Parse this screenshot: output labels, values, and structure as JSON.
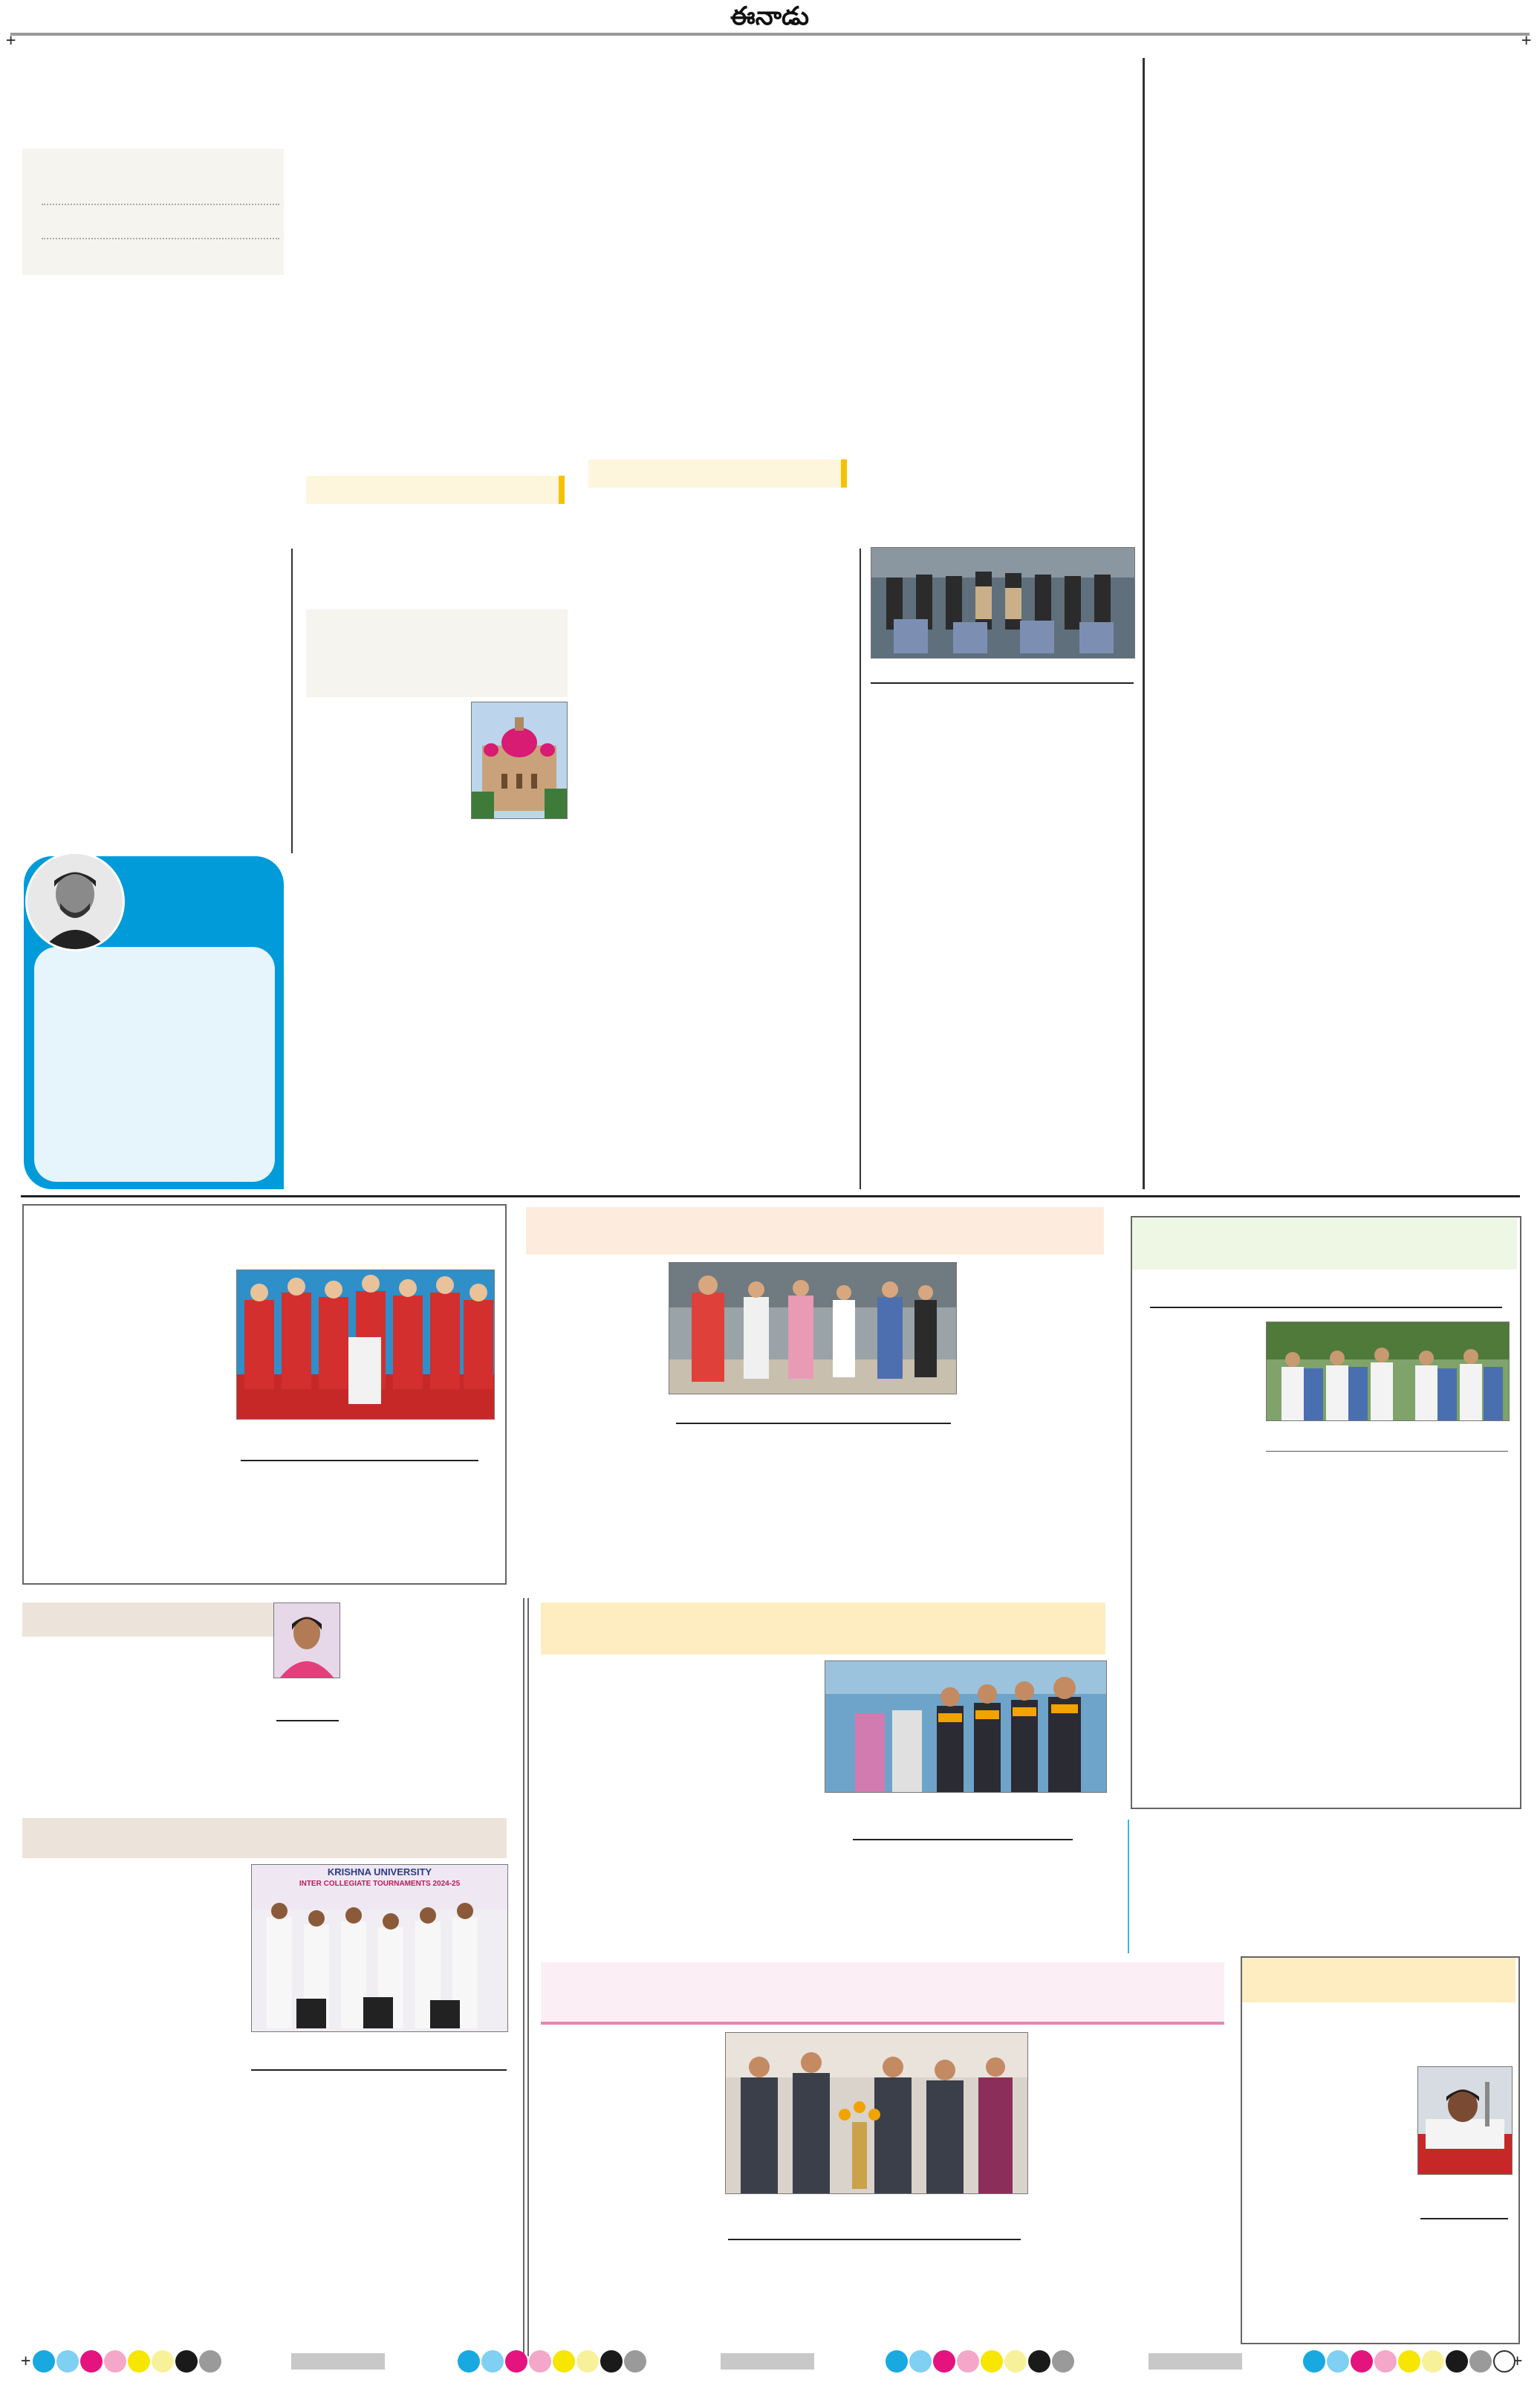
{
  "masthead": {
    "title": "ఈనాడు"
  },
  "registration_mark": "+",
  "photos": [
    {
      "name": "police-group-with-suitcases-photo"
    },
    {
      "name": "high-court-dome-photo"
    },
    {
      "name": "columnist-portrait-photo"
    },
    {
      "name": "celebration-group-red-shirts-photo"
    },
    {
      "name": "women-walking-rally-photo"
    },
    {
      "name": "students-crowd-photo"
    },
    {
      "name": "woman-portrait-photo"
    },
    {
      "name": "students-garlanded-welcome-photo"
    },
    {
      "name": "krishna-university-team-photo"
    },
    {
      "name": "lamp-lighting-inauguration-photo"
    },
    {
      "name": "hospital-patient-photo"
    }
  ],
  "team_photo_banner": {
    "line1": "KRISHNA UNIVERSITY",
    "line2": "INTER COLLEGIATE TOURNAMENTS 2024-25"
  },
  "color_bar": {
    "colors": [
      "#19a9e1",
      "#7fd0f2",
      "#e5137e",
      "#f4a7c8",
      "#f6e600",
      "#f7f29a",
      "#1a1a1a",
      "#9a9a9a"
    ]
  }
}
